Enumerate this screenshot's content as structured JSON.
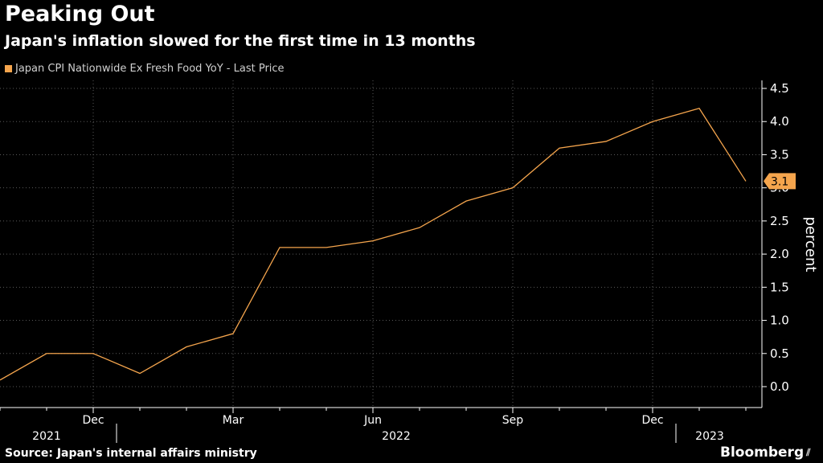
{
  "header": {
    "title": "Peaking Out",
    "subtitle": "Japan's inflation slowed for the first time in 13 months"
  },
  "legend": {
    "label": "Japan CPI Nationwide Ex Fresh Food YoY - Last Price"
  },
  "footer": {
    "source": "Source: Japan's internal affairs ministry",
    "brand": "Bloomberg"
  },
  "colors": {
    "series": "#f5a54d",
    "grid": "#5a5a5a",
    "background": "#000000"
  },
  "chart_data": {
    "type": "line",
    "title": "Peaking Out",
    "subtitle": "Japan's inflation slowed for the first time in 13 months",
    "ylabel": "percent",
    "xlabel": "",
    "ylim": [
      -0.3,
      4.65
    ],
    "yticks": [
      0.0,
      0.5,
      1.0,
      1.5,
      2.0,
      2.5,
      3.0,
      3.5,
      4.0,
      4.5
    ],
    "ytick_labels": [
      "0.0",
      "0.5",
      "1.0",
      "1.5",
      "2.0",
      "2.5",
      "3.0",
      "3.5",
      "4.0",
      "4.5"
    ],
    "x": [
      "2021-10",
      "2021-11",
      "2021-12",
      "2022-01",
      "2022-02",
      "2022-03",
      "2022-04",
      "2022-05",
      "2022-06",
      "2022-07",
      "2022-08",
      "2022-09",
      "2022-10",
      "2022-11",
      "2022-12",
      "2023-01",
      "2023-02"
    ],
    "series": [
      {
        "name": "Japan CPI Nationwide Ex Fresh Food YoY - Last Price",
        "values": [
          0.1,
          0.5,
          0.5,
          0.2,
          0.6,
          0.8,
          2.1,
          2.1,
          2.2,
          2.4,
          2.8,
          3.0,
          3.6,
          3.7,
          4.0,
          4.2,
          3.1
        ]
      }
    ],
    "month_ticks": [
      {
        "index": 2,
        "label": "Dec"
      },
      {
        "index": 5,
        "label": "Mar"
      },
      {
        "index": 8,
        "label": "Jun"
      },
      {
        "index": 11,
        "label": "Sep"
      },
      {
        "index": 14,
        "label": "Dec"
      }
    ],
    "year_labels": [
      {
        "label": "2021",
        "from": 0,
        "to": 2
      },
      {
        "label": "2022",
        "from": 3,
        "to": 14
      },
      {
        "label": "2023",
        "from": 15,
        "to": 16
      }
    ],
    "year_dividers": [
      2.5,
      14.5
    ],
    "last_value_label": "3.1",
    "legend_position": "top-left"
  }
}
